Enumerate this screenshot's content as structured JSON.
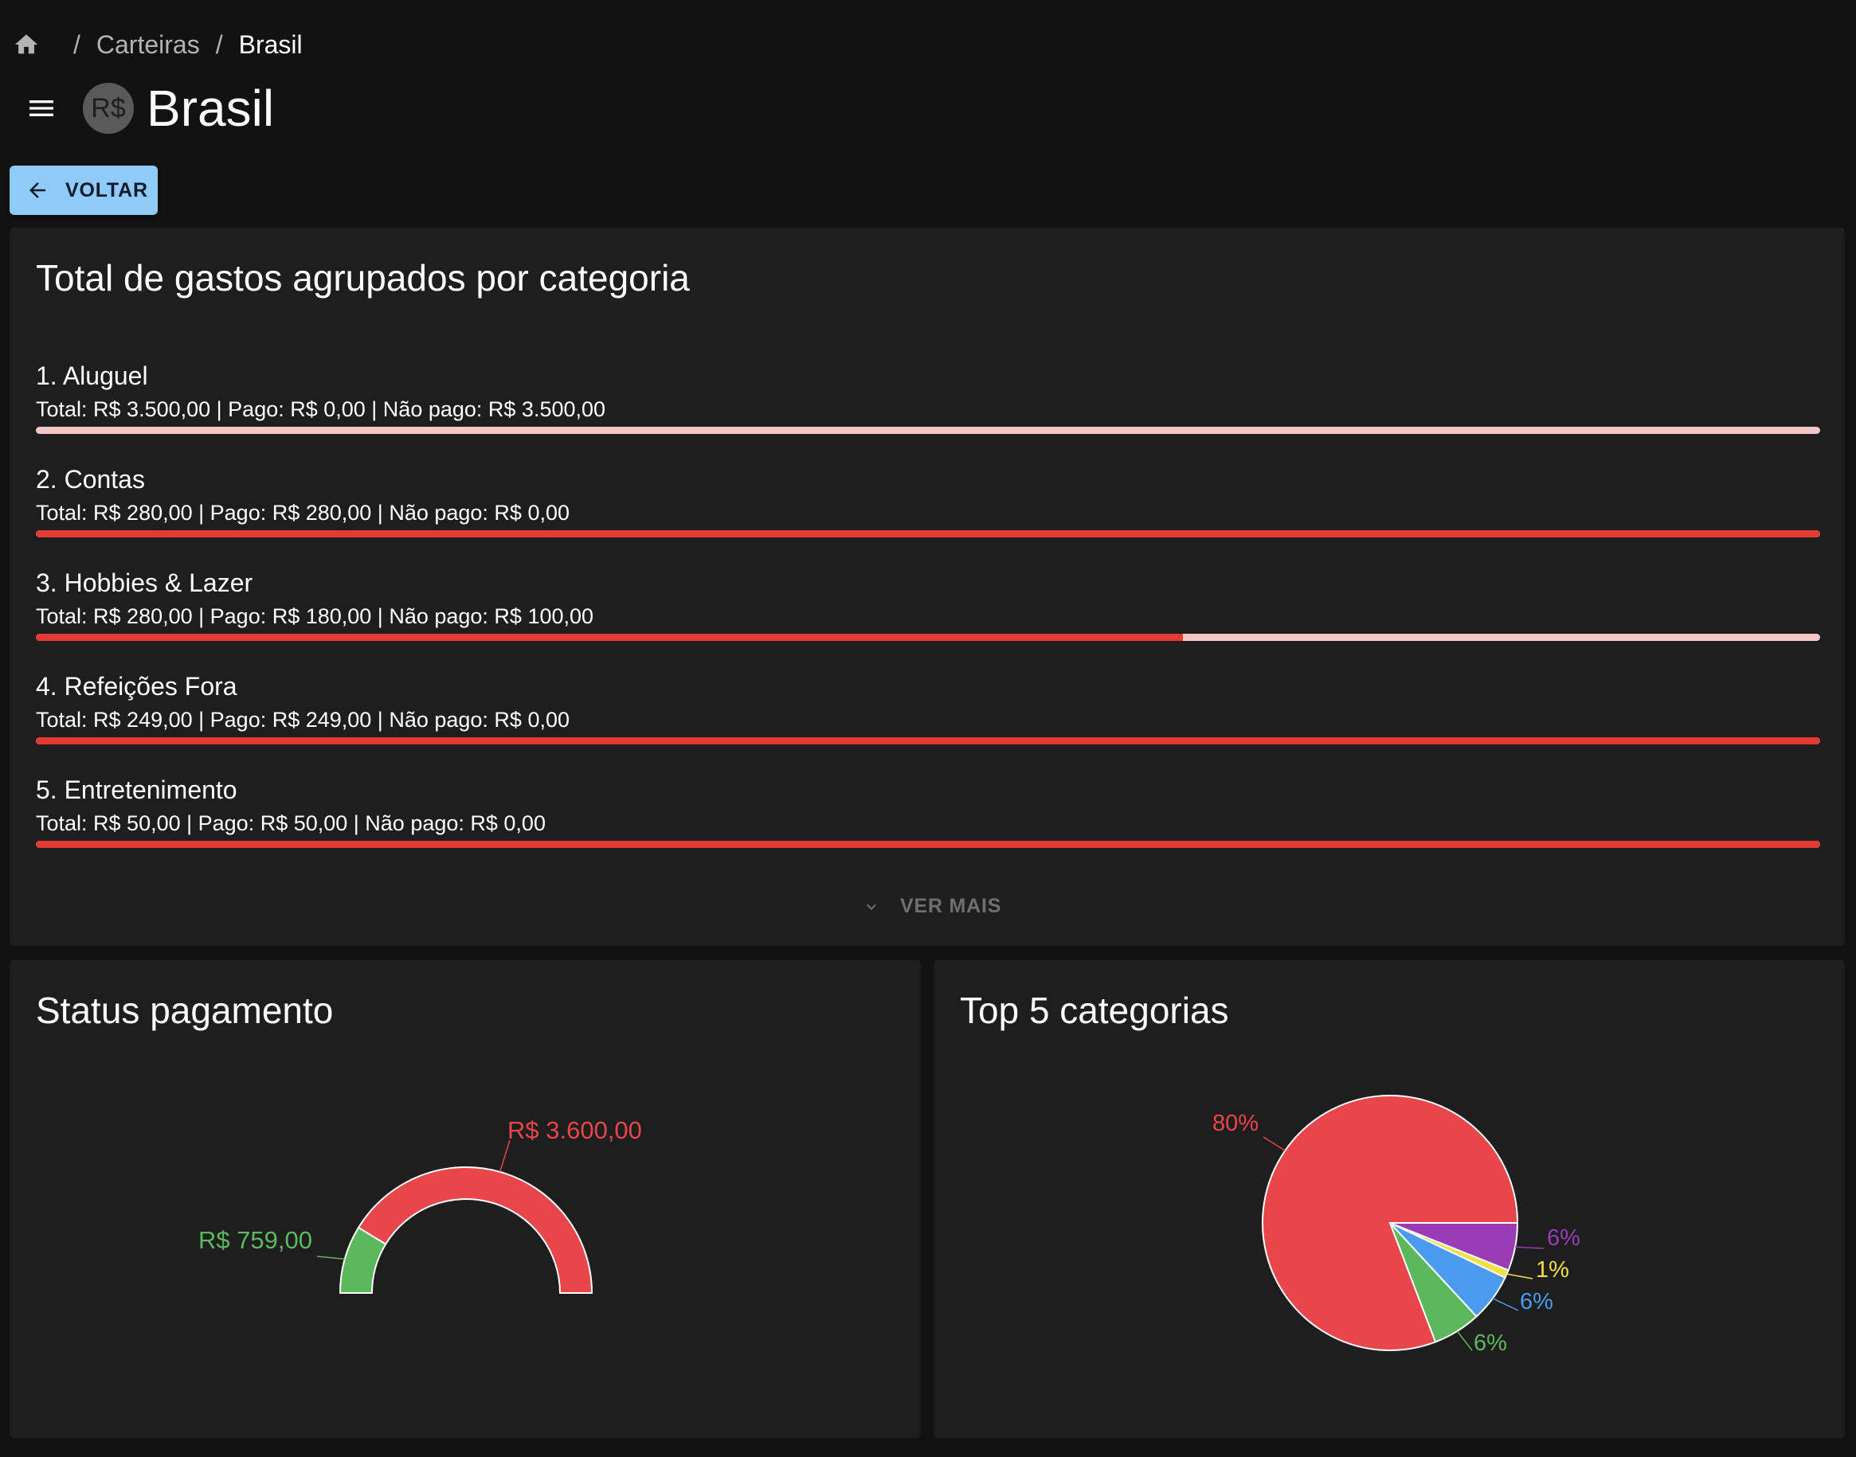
{
  "breadcrumb": {
    "items": [
      "Carteiras"
    ],
    "current": "Brasil"
  },
  "header": {
    "avatar_text": "R$",
    "title": "Brasil"
  },
  "back_button": {
    "label": "VOLTAR"
  },
  "categories_card": {
    "title": "Total de gastos agrupados por categoria",
    "items": [
      {
        "name": "1. Aluguel",
        "detail": "Total: R$ 3.500,00 | Pago: R$ 0,00 | Não pago: R$ 3.500,00",
        "paid_fraction": 0.0
      },
      {
        "name": "2. Contas",
        "detail": "Total: R$ 280,00 | Pago: R$ 280,00 | Não pago: R$ 0,00",
        "paid_fraction": 1.0
      },
      {
        "name": "3. Hobbies & Lazer",
        "detail": "Total: R$ 280,00 | Pago: R$ 180,00 | Não pago: R$ 100,00",
        "paid_fraction": 0.643
      },
      {
        "name": "4. Refeições Fora",
        "detail": "Total: R$ 249,00 | Pago: R$ 249,00 | Não pago: R$ 0,00",
        "paid_fraction": 1.0
      },
      {
        "name": "5. Entretenimento",
        "detail": "Total: R$ 50,00 | Pago: R$ 50,00 | Não pago: R$ 0,00",
        "paid_fraction": 1.0
      }
    ],
    "ver_mais_label": "VER MAIS"
  },
  "status_card": {
    "title": "Status pagamento"
  },
  "top5_card": {
    "title": "Top 5 categorias"
  },
  "colors": {
    "red": "#e8464b",
    "green": "#5cb85c",
    "blue": "#4a9bf0",
    "yellow": "#f2e043",
    "purple": "#9b3cb7",
    "bar_paid": "#e53935",
    "bar_unpaid": "#f5c6c6",
    "button": "#90caf9"
  },
  "chart_data": [
    {
      "type": "pie",
      "subtype": "semi-donut",
      "slices": [
        {
          "label": "R$ 759,00",
          "value": 759,
          "color": "#5cb85c"
        },
        {
          "label": "R$ 3.600,00",
          "value": 3600,
          "color": "#e8464b"
        }
      ]
    },
    {
      "type": "pie",
      "slices": [
        {
          "label": "80%",
          "value": 80,
          "color": "#e8464b"
        },
        {
          "label": "6%",
          "value": 6,
          "color": "#9b3cb7"
        },
        {
          "label": "1%",
          "value": 1,
          "color": "#f2e043"
        },
        {
          "label": "6%",
          "value": 6,
          "color": "#4a9bf0"
        },
        {
          "label": "6%",
          "value": 6,
          "color": "#5cb85c"
        }
      ]
    }
  ]
}
